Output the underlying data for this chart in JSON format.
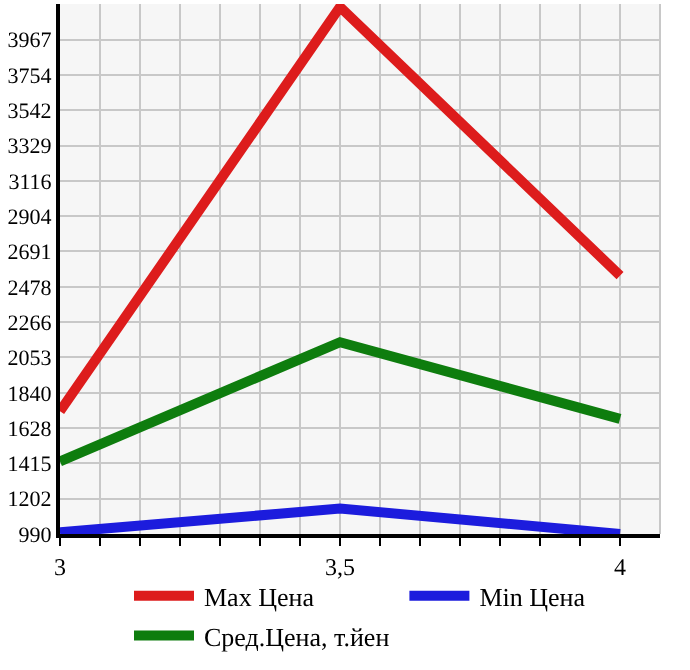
{
  "chart_data": {
    "type": "line",
    "x": [
      3,
      3.5,
      4
    ],
    "series": [
      {
        "name": "Max Цена",
        "color": "#dd1c1c",
        "values": [
          1729,
          4163,
          2546
        ]
      },
      {
        "name": "Min Цена",
        "color": "#1c1cdd",
        "values": [
          1000,
          1143,
          990
        ]
      },
      {
        "name": "Сред.Цена, т.йен",
        "color": "#0e7d0e",
        "values": [
          1427,
          2145,
          1683
        ]
      }
    ],
    "xlim": [
      3,
      4.0714
    ],
    "xticks": [
      3,
      {
        "value": 3.0714,
        "label": null
      },
      {
        "value": 3.1429,
        "label": null
      },
      {
        "value": 3.2143,
        "label": null
      },
      {
        "value": 3.2857,
        "label": null
      },
      {
        "value": 3.3571,
        "label": null
      },
      {
        "value": 3.4286,
        "label": null
      },
      {
        "value": 3.5,
        "label": "3,5"
      },
      {
        "value": 3.5714,
        "label": null
      },
      {
        "value": 3.6429,
        "label": null
      },
      {
        "value": 3.7143,
        "label": null
      },
      {
        "value": 3.7857,
        "label": null
      },
      {
        "value": 3.8571,
        "label": null
      },
      {
        "value": 3.9286,
        "label": null
      },
      4
    ],
    "ylim": [
      990,
      4181
    ],
    "yticks": [
      990,
      1202,
      1415,
      1628,
      1840,
      2053,
      2266,
      2478,
      2691,
      2904,
      3116,
      3329,
      3542,
      3754,
      3967
    ],
    "grid": true,
    "legend": "bottom",
    "marker": "none",
    "line_style": "solid"
  }
}
